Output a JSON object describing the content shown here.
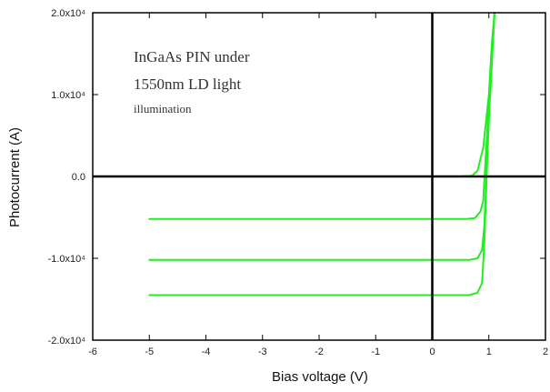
{
  "chart_data": {
    "type": "line",
    "title": "",
    "xlabel": "Bias voltage (V)",
    "ylabel": "Photocurrent (A)",
    "xlim": [
      -6,
      2
    ],
    "ylim": [
      -20000,
      20000
    ],
    "x_ticks": [
      "-6",
      "-5",
      "-4",
      "-3",
      "-2",
      "-1",
      "0",
      "1",
      "2"
    ],
    "y_ticks": [
      "-2.0x10⁴",
      "-1.0x10⁴",
      "0.0",
      "1.0x10⁴",
      "2.0x10⁴"
    ],
    "y_tick_values": [
      -20000,
      -10000,
      0,
      10000,
      20000
    ],
    "grid": false,
    "legend": "none",
    "series_color": "#22ee22",
    "annotation": {
      "line1": "InGaAs PIN under",
      "line2": "1550nm LD light",
      "line3": "illumination"
    },
    "series": [
      {
        "x": [
          -5,
          0.5,
          0.7,
          0.8,
          0.9,
          1.0,
          1.05,
          1.1
        ],
        "y": [
          0,
          0,
          80,
          700,
          3500,
          10000,
          16000,
          20000
        ]
      },
      {
        "x": [
          -5,
          0.6,
          0.75,
          0.85,
          0.9,
          0.95,
          1.0,
          1.05,
          1.1
        ],
        "y": [
          -5200,
          -5200,
          -5100,
          -4300,
          -3000,
          3000,
          9000,
          15000,
          20000
        ]
      },
      {
        "x": [
          -5,
          0.65,
          0.8,
          0.88,
          0.92,
          0.96,
          1.0,
          1.05,
          1.1
        ],
        "y": [
          -10200,
          -10200,
          -10000,
          -9000,
          -6000,
          1000,
          8000,
          14000,
          20000
        ]
      },
      {
        "x": [
          -5,
          0.65,
          0.8,
          0.88,
          0.92,
          0.96,
          1.0,
          1.05,
          1.1
        ],
        "y": [
          -14500,
          -14500,
          -14200,
          -13000,
          -8000,
          0,
          7000,
          13500,
          20000
        ]
      }
    ]
  }
}
